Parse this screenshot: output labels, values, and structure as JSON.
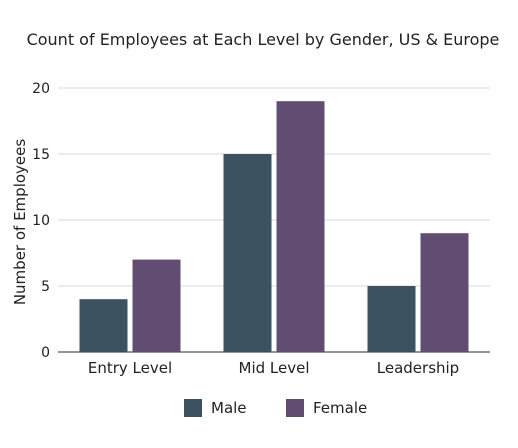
{
  "chart_data": {
    "type": "bar",
    "title": "Count of Employees at Each Level by Gender, US & Europe",
    "xlabel": "",
    "ylabel": "Number of Employees",
    "categories": [
      "Entry Level",
      "Mid Level",
      "Leadership"
    ],
    "series": [
      {
        "name": "Male",
        "values": [
          4,
          15,
          5
        ],
        "color": "#3d5260"
      },
      {
        "name": "Female",
        "values": [
          7,
          19,
          9
        ],
        "color": "#614c72"
      }
    ],
    "ylim": [
      0,
      20
    ],
    "yticks": [
      0,
      5,
      10,
      15,
      20
    ],
    "grid": true,
    "legend": "bottom-center"
  }
}
